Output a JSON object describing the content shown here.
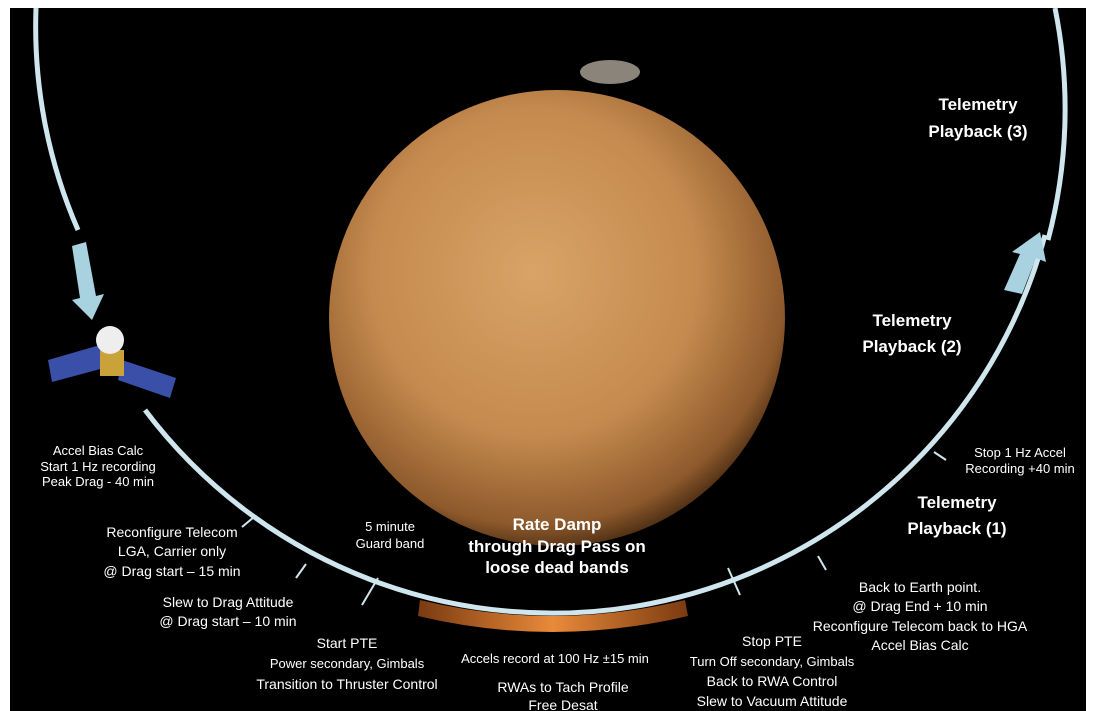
{
  "labels": [
    {
      "lines": [
        "Telemetry",
        "Playback (3)"
      ]
    },
    {
      "lines": [
        "Telemetry",
        "Playback (2)"
      ]
    },
    {
      "lines": [
        "Telemetry",
        "Playback (1)"
      ]
    },
    {
      "lines": [
        "Stop 1 Hz Accel",
        "Recording +40 min"
      ]
    },
    {
      "lines": [
        "Accel Bias Calc",
        "Start 1 Hz recording",
        "Peak Drag  - 40 min"
      ]
    },
    {
      "lines": [
        "Reconfigure Telecom",
        "LGA, Carrier only",
        "@ Drag start – 15 min"
      ]
    },
    {
      "lines": [
        "5 minute",
        "Guard band"
      ]
    },
    {
      "lines": [
        "Rate Damp",
        "through Drag Pass on",
        "loose dead bands"
      ]
    },
    {
      "lines": [
        "Slew to Drag Attitude",
        "@ Drag start – 10 min"
      ]
    },
    {
      "lines": [
        "Start PTE",
        "Power secondary, Gimbals",
        "Transition to Thruster Control"
      ]
    },
    {
      "lines": [
        "Accels record at 100 Hz ±15 min",
        "RWAs to Tach Profile",
        "Free Desat"
      ]
    },
    {
      "lines": [
        "Stop PTE",
        "Turn Off secondary, Gimbals",
        "Back to RWA Control",
        "Slew to Vacuum Attitude"
      ]
    },
    {
      "lines": [
        "Back to Earth point.",
        "@ Drag End + 10 min",
        "Reconfigure Telecom back to HGA",
        "Accel Bias Calc"
      ]
    }
  ]
}
